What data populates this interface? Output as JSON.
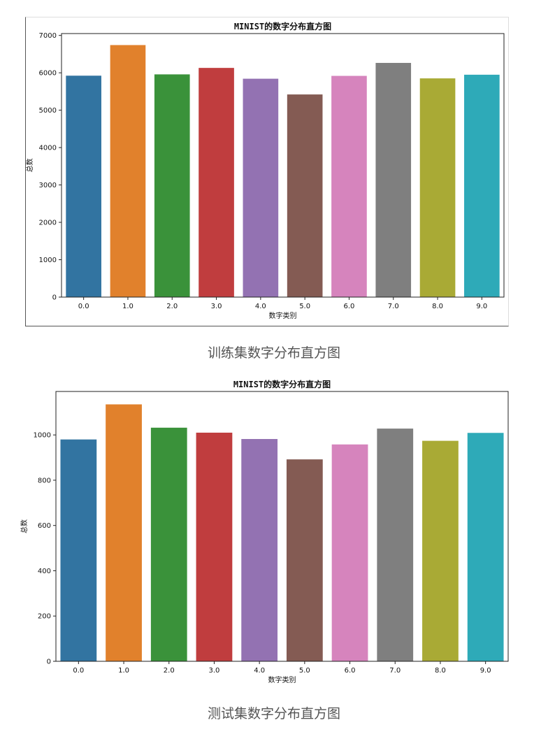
{
  "chart_data": [
    {
      "type": "bar",
      "title": "MINIST的数字分布直方图",
      "xlabel": "数字类别",
      "ylabel": "总数",
      "categories": [
        "0.0",
        "1.0",
        "2.0",
        "3.0",
        "4.0",
        "5.0",
        "6.0",
        "7.0",
        "8.0",
        "9.0"
      ],
      "values": [
        5923,
        6742,
        5958,
        6131,
        5842,
        5421,
        5918,
        6265,
        5851,
        5949
      ],
      "colors": [
        "#3274a1",
        "#e1812c",
        "#3a923a",
        "#c03d3e",
        "#9372b2",
        "#845b53",
        "#d684bd",
        "#7f7f7f",
        "#a9aa35",
        "#2eaab8"
      ],
      "ylim": [
        0,
        7050
      ],
      "yticks": [
        0,
        1000,
        2000,
        3000,
        4000,
        5000,
        6000,
        7000
      ],
      "grid": false
    },
    {
      "type": "bar",
      "title": "MINIST的数字分布直方图",
      "xlabel": "数字类别",
      "ylabel": "总数",
      "categories": [
        "0.0",
        "1.0",
        "2.0",
        "3.0",
        "4.0",
        "5.0",
        "6.0",
        "7.0",
        "8.0",
        "9.0"
      ],
      "values": [
        980,
        1135,
        1032,
        1010,
        982,
        892,
        958,
        1028,
        974,
        1009
      ],
      "colors": [
        "#3274a1",
        "#e1812c",
        "#3a923a",
        "#c03d3e",
        "#9372b2",
        "#845b53",
        "#d684bd",
        "#7f7f7f",
        "#a9aa35",
        "#2eaab8"
      ],
      "ylim": [
        0,
        1192
      ],
      "yticks": [
        0,
        200,
        400,
        600,
        800,
        1000
      ],
      "grid": false
    }
  ],
  "captions": [
    "训练集数字分布直方图",
    "测试集数字分布直方图"
  ]
}
